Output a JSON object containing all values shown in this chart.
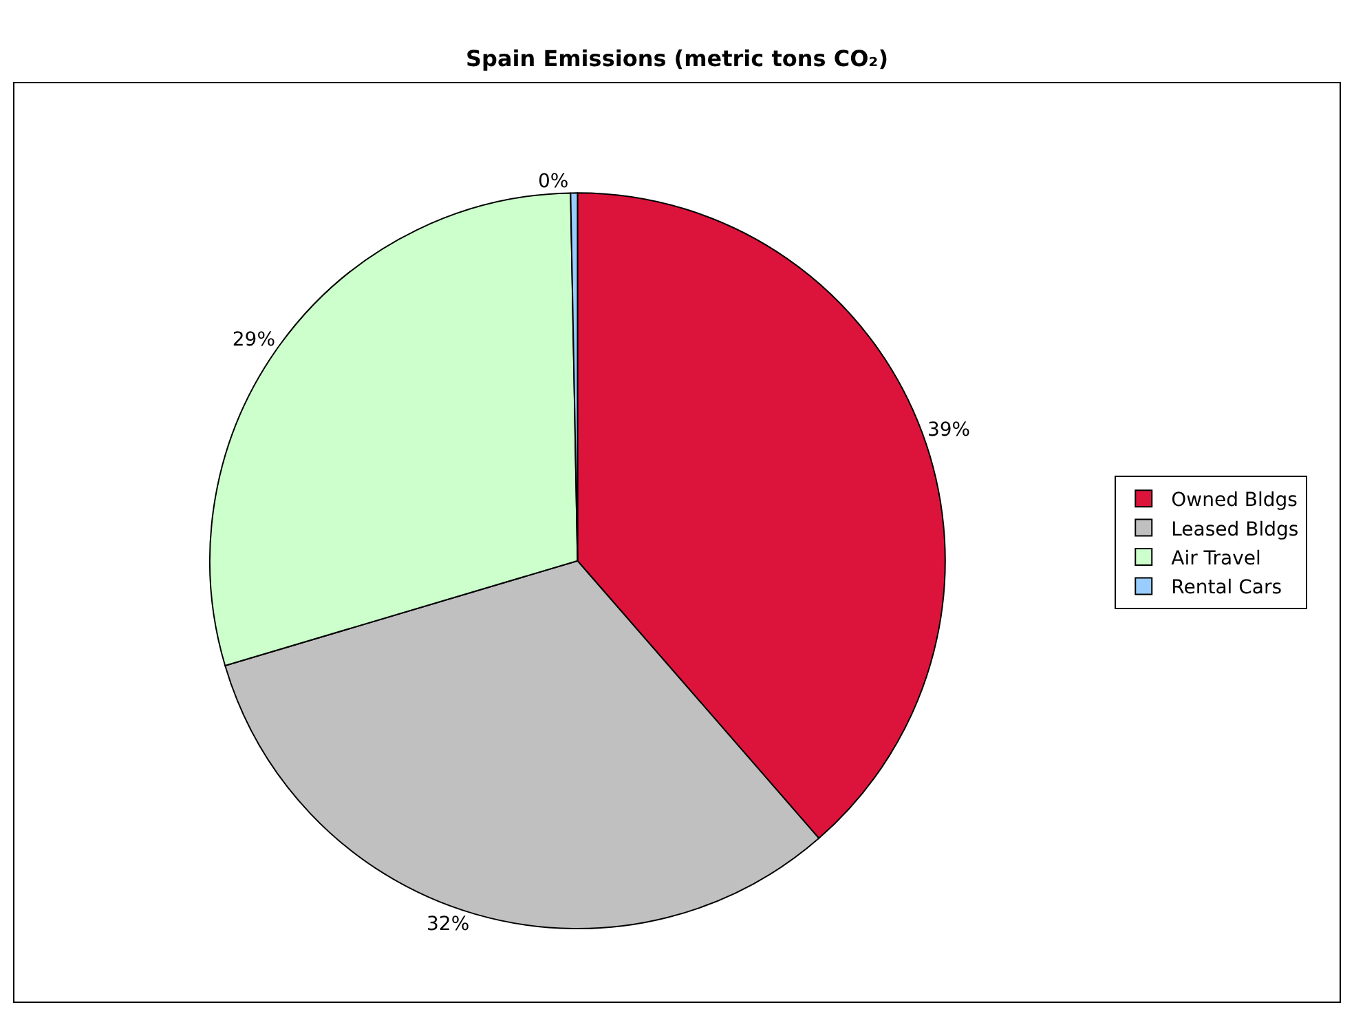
{
  "chart_data": {
    "type": "pie",
    "title": "Spain Emissions (metric tons CO₂)",
    "categories": [
      "Owned Bldgs",
      "Leased Bldgs",
      "Air Travel",
      "Rental Cars"
    ],
    "values": [
      38.6,
      31.8,
      29.3,
      0.3
    ],
    "value_labels": [
      "39%",
      "32%",
      "29%",
      "0%"
    ],
    "colors": [
      "#dc143c",
      "#c0c0c0",
      "#ccffcc",
      "#99ccff"
    ],
    "legend": "right"
  }
}
